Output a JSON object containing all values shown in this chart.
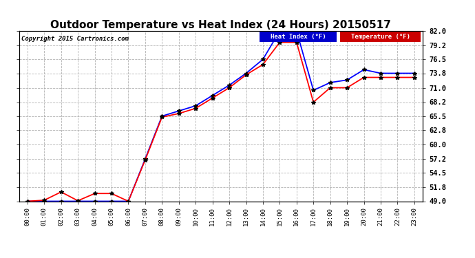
{
  "title": "Outdoor Temperature vs Heat Index (24 Hours) 20150517",
  "copyright": "Copyright 2015 Cartronics.com",
  "x_labels": [
    "00:00",
    "01:00",
    "02:00",
    "03:00",
    "04:00",
    "05:00",
    "06:00",
    "07:00",
    "08:00",
    "09:00",
    "10:00",
    "11:00",
    "12:00",
    "13:00",
    "14:00",
    "15:00",
    "16:00",
    "17:00",
    "18:00",
    "19:00",
    "20:00",
    "21:00",
    "22:00",
    "23:00"
  ],
  "heat_index": [
    49.0,
    49.0,
    49.0,
    49.0,
    49.0,
    49.0,
    49.0,
    57.2,
    65.5,
    66.5,
    67.5,
    69.5,
    71.5,
    73.8,
    76.5,
    82.0,
    82.0,
    70.5,
    72.0,
    72.5,
    74.5,
    73.8,
    73.8,
    73.8
  ],
  "temperature": [
    49.0,
    49.2,
    50.8,
    49.1,
    50.5,
    50.5,
    49.0,
    57.0,
    65.3,
    66.0,
    67.0,
    69.0,
    71.0,
    73.5,
    75.5,
    79.8,
    79.8,
    68.2,
    71.0,
    71.0,
    73.0,
    73.0,
    73.0,
    73.0
  ],
  "ylim_min": 49.0,
  "ylim_max": 82.0,
  "yticks": [
    49.0,
    51.8,
    54.5,
    57.2,
    60.0,
    62.8,
    65.5,
    68.2,
    71.0,
    73.8,
    76.5,
    79.2,
    82.0
  ],
  "heat_index_color": "#0000ff",
  "temperature_color": "#ff0000",
  "background_color": "#ffffff",
  "plot_bg_color": "#ffffff",
  "grid_color": "#aaaaaa",
  "title_fontsize": 11,
  "legend_heat_label": "Heat Index (°F)",
  "legend_temp_label": "Temperature (°F)"
}
